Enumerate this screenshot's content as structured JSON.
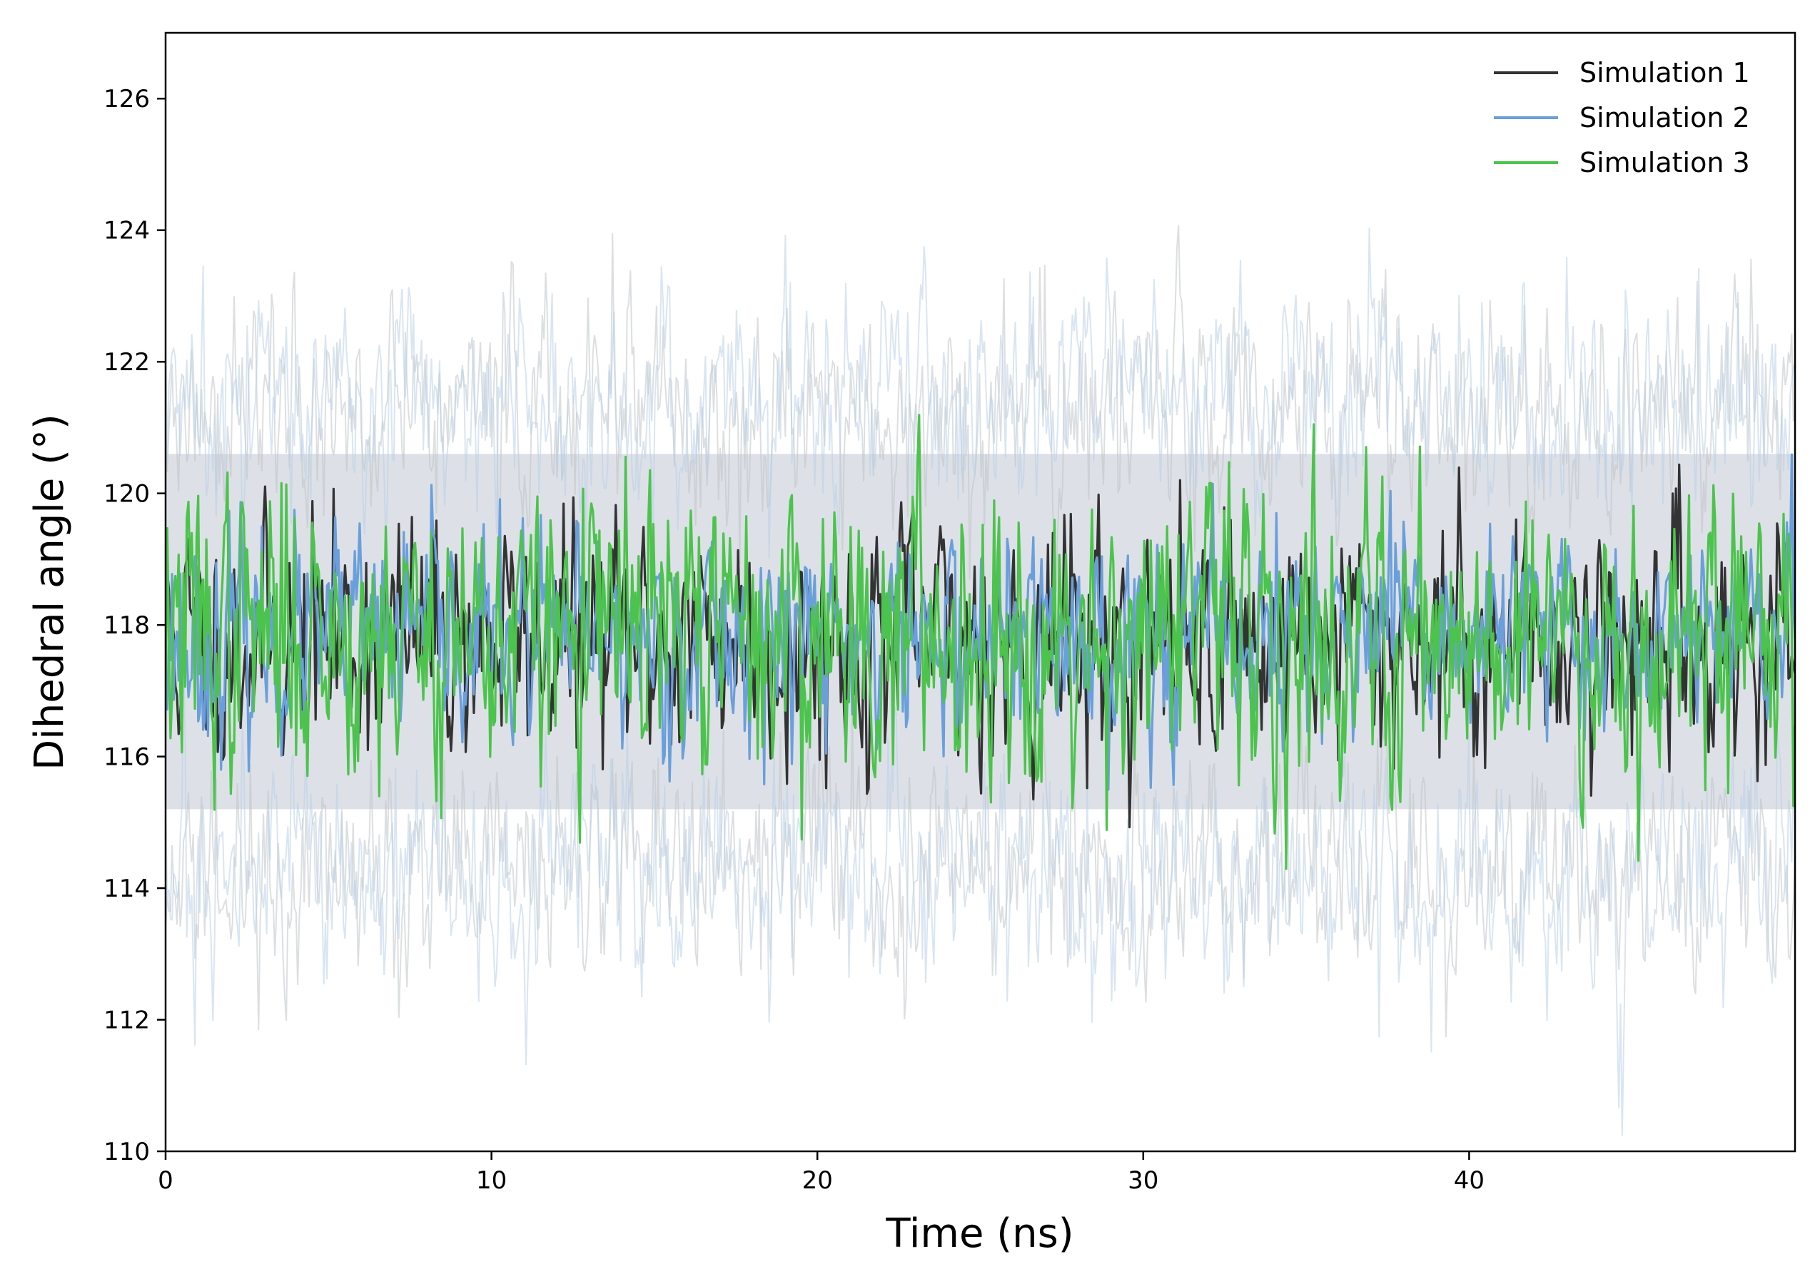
{
  "chart_data": {
    "type": "line",
    "title": "",
    "xlabel": "Time (ns)",
    "ylabel": "Dihedral angle (°)",
    "xlim": [
      0,
      50
    ],
    "ylim": [
      110,
      127
    ],
    "xticks": [
      0,
      10,
      20,
      30,
      40
    ],
    "xtick_labels": [
      "0",
      "10",
      "20",
      "30",
      "40"
    ],
    "yticks": [
      110,
      112,
      114,
      116,
      118,
      120,
      122,
      124,
      126
    ],
    "ytick_labels": [
      "110",
      "112",
      "114",
      "116",
      "118",
      "120",
      "122",
      "124",
      "126"
    ],
    "grid": false,
    "legend_position": "top-right",
    "n_points": 1000,
    "series": [
      {
        "name": "Simulation 1",
        "color": "#333333",
        "mean": 117.8,
        "std": 0.85,
        "band_color": "#c0c4c8",
        "band_sd": 3.4,
        "seed": 11
      },
      {
        "name": "Simulation 2",
        "color": "#6a9fdb",
        "mean": 117.8,
        "std": 0.75,
        "band_color": "#b9cfe8",
        "band_sd": 3.6,
        "seed": 23
      },
      {
        "name": "Simulation 3",
        "color": "#4cc34c",
        "mean": 117.9,
        "std": 1.05,
        "band_color": null,
        "band_sd": 0,
        "seed": 37
      }
    ],
    "shaded_region": {
      "lower": 115.2,
      "upper": 120.6,
      "color": "#dde1e7"
    }
  }
}
